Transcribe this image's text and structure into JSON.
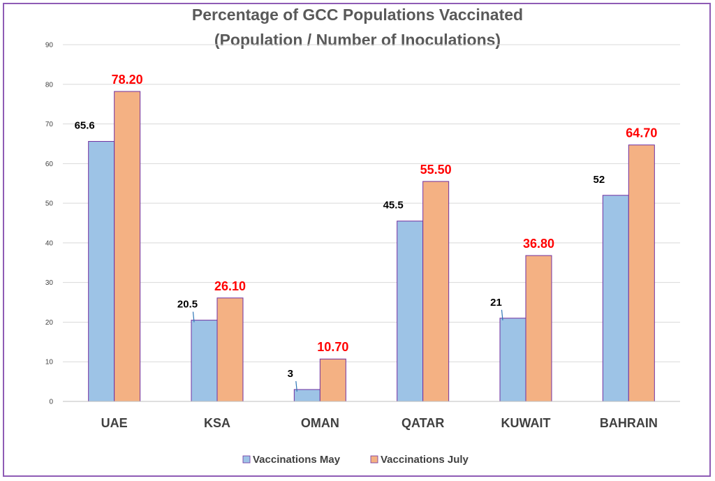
{
  "chart_data": {
    "type": "bar",
    "title": "Percentage of GCC Populations  Vaccinated",
    "subtitle": "(Population / Number of Inoculations)",
    "categories": [
      "UAE",
      "KSA",
      "OMAN",
      "QATAR",
      "KUWAIT",
      "BAHRAIN"
    ],
    "series": [
      {
        "name": "Vaccinations May",
        "values": [
          65.6,
          20.5,
          3,
          45.5,
          21,
          52
        ],
        "labels": [
          "65.6",
          "20.5",
          "3",
          "45.5",
          "21",
          "52"
        ],
        "color": "#9dc3e6",
        "label_color": "#000000"
      },
      {
        "name": "Vaccinations July",
        "values": [
          78.2,
          26.1,
          10.7,
          55.5,
          36.8,
          64.7
        ],
        "labels": [
          "78.20",
          "26.10",
          "10.70",
          "55.50",
          "36.80",
          "64.70"
        ],
        "color": "#f4b183",
        "label_color": "#ff0000"
      }
    ],
    "ylim": [
      0,
      90
    ],
    "yticks": [
      0,
      10,
      20,
      30,
      40,
      50,
      60,
      70,
      80,
      90
    ],
    "grid": true,
    "legend": "bottom-center",
    "bar_outline_color": "#7030a0",
    "frame_color": "#8e5bb5"
  }
}
